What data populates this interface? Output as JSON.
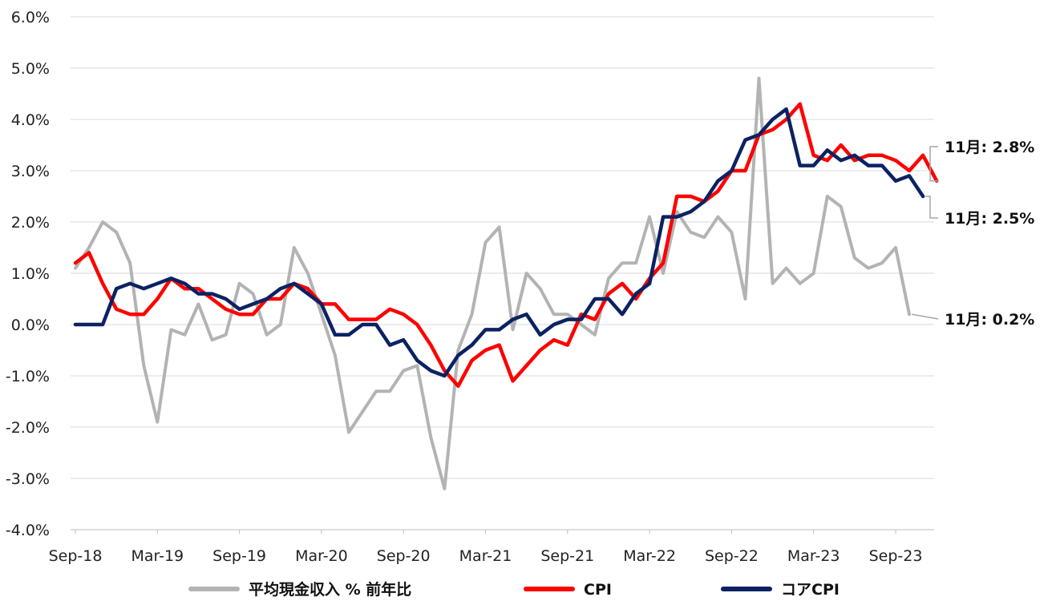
{
  "chart_data": {
    "type": "line",
    "title": "",
    "xlabel": "",
    "ylabel": "",
    "ylim": [
      -4.0,
      6.0
    ],
    "y_ticks": [
      "-4.0%",
      "-3.0%",
      "-2.0%",
      "-1.0%",
      "0.0%",
      "1.0%",
      "2.0%",
      "3.0%",
      "4.0%",
      "5.0%",
      "6.0%"
    ],
    "y_tick_values": [
      -4,
      -3,
      -2,
      -1,
      0,
      1,
      2,
      3,
      4,
      5,
      6
    ],
    "x_ticks": [
      "Sep-18",
      "Mar-19",
      "Sep-19",
      "Mar-20",
      "Sep-20",
      "Mar-21",
      "Sep-21",
      "Mar-22",
      "Sep-22",
      "Mar-23",
      "Sep-23"
    ],
    "x_tick_index": [
      0,
      6,
      12,
      18,
      24,
      30,
      36,
      42,
      48,
      54,
      60
    ],
    "grid": true,
    "legend_position": "bottom",
    "series": [
      {
        "name": "平均現金収入 % 前年比",
        "color": "#b3b3b3",
        "values": [
          1.1,
          1.5,
          2.0,
          1.8,
          1.2,
          -0.8,
          -1.9,
          -0.1,
          -0.2,
          0.4,
          -0.3,
          -0.2,
          0.8,
          0.6,
          -0.2,
          0.0,
          1.5,
          1.0,
          0.2,
          -0.6,
          -2.1,
          -1.7,
          -1.3,
          -1.3,
          -0.9,
          -0.8,
          -2.2,
          -3.2,
          -0.5,
          0.2,
          1.6,
          1.9,
          -0.1,
          1.0,
          0.7,
          0.2,
          0.2,
          0.0,
          -0.2,
          0.9,
          1.2,
          1.2,
          2.1,
          1.0,
          2.2,
          1.8,
          1.7,
          2.1,
          1.8,
          0.5,
          4.8,
          0.8,
          1.1,
          0.8,
          1.0,
          2.5,
          2.3,
          1.3,
          1.1,
          1.2,
          1.5,
          0.2
        ]
      },
      {
        "name": "CPI",
        "color": "#ff0000",
        "values": [
          1.2,
          1.4,
          0.8,
          0.3,
          0.2,
          0.2,
          0.5,
          0.9,
          0.7,
          0.7,
          0.5,
          0.3,
          0.2,
          0.2,
          0.5,
          0.5,
          0.8,
          0.7,
          0.4,
          0.4,
          0.1,
          0.1,
          0.1,
          0.3,
          0.2,
          0.0,
          -0.4,
          -0.9,
          -1.2,
          -0.7,
          -0.5,
          -0.4,
          -1.1,
          -0.8,
          -0.5,
          -0.3,
          -0.4,
          0.2,
          0.1,
          0.6,
          0.8,
          0.5,
          0.9,
          1.2,
          2.5,
          2.5,
          2.4,
          2.6,
          3.0,
          3.0,
          3.7,
          3.8,
          4.0,
          4.3,
          3.3,
          3.2,
          3.5,
          3.2,
          3.3,
          3.3,
          3.2,
          3.0,
          3.3,
          2.8
        ]
      },
      {
        "name": "コアCPI",
        "color": "#0b2262",
        "values": [
          0.0,
          0.0,
          0.0,
          0.7,
          0.8,
          0.7,
          0.8,
          0.9,
          0.8,
          0.6,
          0.6,
          0.5,
          0.3,
          0.4,
          0.5,
          0.7,
          0.8,
          0.6,
          0.4,
          -0.2,
          -0.2,
          0.0,
          0.0,
          -0.4,
          -0.3,
          -0.7,
          -0.9,
          -1.0,
          -0.6,
          -0.4,
          -0.1,
          -0.1,
          0.1,
          0.2,
          -0.2,
          0.0,
          0.1,
          0.1,
          0.5,
          0.5,
          0.2,
          0.6,
          0.8,
          2.1,
          2.1,
          2.2,
          2.4,
          2.8,
          3.0,
          3.6,
          3.7,
          4.0,
          4.2,
          3.1,
          3.1,
          3.4,
          3.2,
          3.3,
          3.1,
          3.1,
          2.8,
          2.9,
          2.5
        ]
      }
    ],
    "annotations": [
      {
        "text": "11月: 2.8%",
        "value": 2.8,
        "series": "CPI"
      },
      {
        "text": "11月: 2.5%",
        "value": 2.5,
        "series": "コアCPI"
      },
      {
        "text": "11月: 0.2%",
        "value": 0.2,
        "series": "平均現金収入 % 前年比"
      }
    ]
  }
}
